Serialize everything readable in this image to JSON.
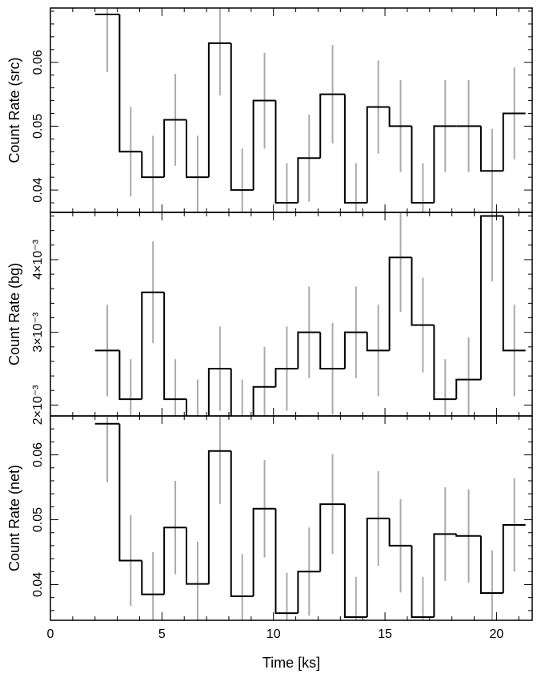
{
  "chart_data": [
    {
      "type": "line",
      "step": true,
      "ylabel": "Count Rate (src)",
      "xlim": [
        0,
        21.6
      ],
      "ylim": [
        0.0365,
        0.0685
      ],
      "yticks": [
        0.04,
        0.05,
        0.06
      ],
      "ytick_labels": [
        "0.04",
        "0.05",
        "0.06"
      ],
      "bins": [
        {
          "x0": 2.0,
          "x1": 3.1,
          "y": 0.0675,
          "err": 0.009
        },
        {
          "x0": 3.1,
          "x1": 4.1,
          "y": 0.046,
          "err": 0.007
        },
        {
          "x0": 4.1,
          "x1": 5.1,
          "y": 0.042,
          "err": 0.0065
        },
        {
          "x0": 5.1,
          "x1": 6.1,
          "y": 0.051,
          "err": 0.0072
        },
        {
          "x0": 6.1,
          "x1": 7.1,
          "y": 0.042,
          "err": 0.0065
        },
        {
          "x0": 7.1,
          "x1": 8.1,
          "y": 0.063,
          "err": 0.0082
        },
        {
          "x0": 8.1,
          "x1": 9.1,
          "y": 0.04,
          "err": 0.0065
        },
        {
          "x0": 9.1,
          "x1": 10.1,
          "y": 0.054,
          "err": 0.0075
        },
        {
          "x0": 10.1,
          "x1": 11.1,
          "y": 0.038,
          "err": 0.0062
        },
        {
          "x0": 11.1,
          "x1": 12.1,
          "y": 0.045,
          "err": 0.0068
        },
        {
          "x0": 12.1,
          "x1": 13.2,
          "y": 0.055,
          "err": 0.0077
        },
        {
          "x0": 13.2,
          "x1": 14.2,
          "y": 0.038,
          "err": 0.0062
        },
        {
          "x0": 14.2,
          "x1": 15.2,
          "y": 0.053,
          "err": 0.0073
        },
        {
          "x0": 15.2,
          "x1": 16.2,
          "y": 0.05,
          "err": 0.0072
        },
        {
          "x0": 16.2,
          "x1": 17.2,
          "y": 0.038,
          "err": 0.0062
        },
        {
          "x0": 17.2,
          "x1": 18.2,
          "y": 0.05,
          "err": 0.0072
        },
        {
          "x0": 18.2,
          "x1": 19.3,
          "y": 0.05,
          "err": 0.0072
        },
        {
          "x0": 19.3,
          "x1": 20.3,
          "y": 0.043,
          "err": 0.0066
        },
        {
          "x0": 20.3,
          "x1": 21.3,
          "y": 0.052,
          "err": 0.0072
        }
      ]
    },
    {
      "type": "line",
      "step": true,
      "ylabel": "Count Rate (bg)",
      "xlim": [
        0,
        21.6
      ],
      "ylim": [
        0.00185,
        0.00465
      ],
      "yticks": [
        0.002,
        0.003,
        0.004
      ],
      "ytick_labels": [
        "2×10⁻³",
        "3×10⁻³",
        "4×10⁻³"
      ],
      "bins": [
        {
          "x0": 2.0,
          "x1": 3.1,
          "y": 0.00275,
          "err": 0.00063
        },
        {
          "x0": 3.1,
          "x1": 4.1,
          "y": 0.00208,
          "err": 0.00055
        },
        {
          "x0": 4.1,
          "x1": 5.1,
          "y": 0.00355,
          "err": 0.0007
        },
        {
          "x0": 5.1,
          "x1": 6.1,
          "y": 0.00208,
          "err": 0.00055
        },
        {
          "x0": 6.1,
          "x1": 7.1,
          "y": 0.0018,
          "err": 0.00055
        },
        {
          "x0": 7.1,
          "x1": 8.1,
          "y": 0.0025,
          "err": 0.00058
        },
        {
          "x0": 8.1,
          "x1": 9.1,
          "y": 0.0018,
          "err": 0.00055
        },
        {
          "x0": 9.1,
          "x1": 10.1,
          "y": 0.00225,
          "err": 0.00055
        },
        {
          "x0": 10.1,
          "x1": 11.1,
          "y": 0.0025,
          "err": 0.00058
        },
        {
          "x0": 11.1,
          "x1": 12.1,
          "y": 0.003,
          "err": 0.00063
        },
        {
          "x0": 12.1,
          "x1": 13.2,
          "y": 0.0025,
          "err": 0.00063
        },
        {
          "x0": 13.2,
          "x1": 14.2,
          "y": 0.003,
          "err": 0.00063
        },
        {
          "x0": 14.2,
          "x1": 15.2,
          "y": 0.00275,
          "err": 0.00063
        },
        {
          "x0": 15.2,
          "x1": 16.2,
          "y": 0.00403,
          "err": 0.00075
        },
        {
          "x0": 16.2,
          "x1": 17.2,
          "y": 0.0031,
          "err": 0.00065
        },
        {
          "x0": 17.2,
          "x1": 18.2,
          "y": 0.00208,
          "err": 0.00055
        },
        {
          "x0": 18.2,
          "x1": 19.3,
          "y": 0.00235,
          "err": 0.00058
        },
        {
          "x0": 19.3,
          "x1": 20.3,
          "y": 0.0046,
          "err": 0.0009
        },
        {
          "x0": 20.3,
          "x1": 21.3,
          "y": 0.00275,
          "err": 0.00063
        }
      ]
    },
    {
      "type": "line",
      "step": true,
      "ylabel": "Count Rate (net)",
      "xlabel": "Time [ks]",
      "xlim": [
        0,
        21.6
      ],
      "xticks": [
        0,
        5,
        10,
        15,
        20
      ],
      "xtick_labels": [
        "0",
        "5",
        "10",
        "15",
        "20"
      ],
      "ylim": [
        0.0345,
        0.066
      ],
      "yticks": [
        0.04,
        0.05,
        0.06
      ],
      "ytick_labels": [
        "0.04",
        "0.05",
        "0.06"
      ],
      "bins": [
        {
          "x0": 2.0,
          "x1": 3.1,
          "y": 0.0648,
          "err": 0.009
        },
        {
          "x0": 3.1,
          "x1": 4.1,
          "y": 0.0437,
          "err": 0.007
        },
        {
          "x0": 4.1,
          "x1": 5.1,
          "y": 0.0385,
          "err": 0.0065
        },
        {
          "x0": 5.1,
          "x1": 6.1,
          "y": 0.0488,
          "err": 0.0072
        },
        {
          "x0": 6.1,
          "x1": 7.1,
          "y": 0.0401,
          "err": 0.0065
        },
        {
          "x0": 7.1,
          "x1": 8.1,
          "y": 0.0606,
          "err": 0.0082
        },
        {
          "x0": 8.1,
          "x1": 9.1,
          "y": 0.0382,
          "err": 0.0065
        },
        {
          "x0": 9.1,
          "x1": 10.1,
          "y": 0.0517,
          "err": 0.0075
        },
        {
          "x0": 10.1,
          "x1": 11.1,
          "y": 0.0356,
          "err": 0.0062
        },
        {
          "x0": 11.1,
          "x1": 12.1,
          "y": 0.042,
          "err": 0.0068
        },
        {
          "x0": 12.1,
          "x1": 13.2,
          "y": 0.0524,
          "err": 0.0077
        },
        {
          "x0": 13.2,
          "x1": 14.2,
          "y": 0.035,
          "err": 0.0062
        },
        {
          "x0": 14.2,
          "x1": 15.2,
          "y": 0.0502,
          "err": 0.0073
        },
        {
          "x0": 15.2,
          "x1": 16.2,
          "y": 0.046,
          "err": 0.0072
        },
        {
          "x0": 16.2,
          "x1": 17.2,
          "y": 0.035,
          "err": 0.0062
        },
        {
          "x0": 17.2,
          "x1": 18.2,
          "y": 0.0478,
          "err": 0.0072
        },
        {
          "x0": 18.2,
          "x1": 19.3,
          "y": 0.0475,
          "err": 0.0072
        },
        {
          "x0": 19.3,
          "x1": 20.3,
          "y": 0.0387,
          "err": 0.0066
        },
        {
          "x0": 20.3,
          "x1": 21.3,
          "y": 0.0492,
          "err": 0.0072
        }
      ]
    }
  ],
  "colors": {
    "step_line": "#000000",
    "error_bar": "#aaaaaa",
    "axes": "#000000"
  }
}
